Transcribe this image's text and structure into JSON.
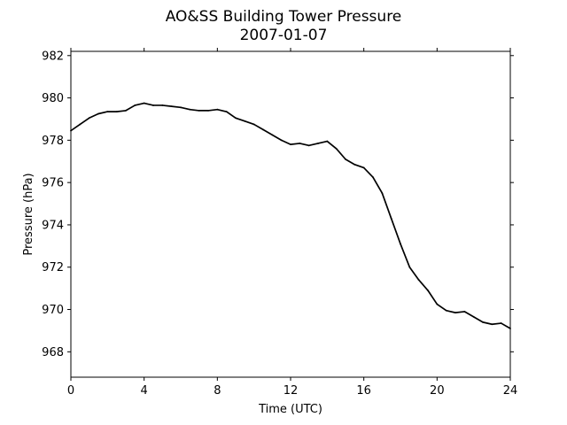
{
  "chart_data": {
    "type": "line",
    "title": "AO&SS Building Tower Pressure",
    "subtitle": "2007-01-07",
    "xlabel": "Time (UTC)",
    "ylabel": "Pressure (hPa)",
    "xlim": [
      0,
      24
    ],
    "ylim": [
      966.8,
      982.2
    ],
    "xticks": [
      0,
      4,
      8,
      12,
      16,
      20,
      24
    ],
    "yticks": [
      968,
      970,
      972,
      974,
      976,
      978,
      980,
      982
    ],
    "grid": false,
    "legend": "none",
    "line_color": "#000000",
    "series": [
      {
        "x": [
          0,
          0.5,
          1,
          1.5,
          2,
          2.5,
          3,
          3.5,
          4,
          4.5,
          5,
          5.5,
          6,
          6.5,
          7,
          7.5,
          8,
          8.5,
          9,
          9.5,
          10,
          10.5,
          11,
          11.5,
          12,
          12.5,
          13,
          13.5,
          14,
          14.5,
          15,
          15.5,
          16,
          16.5,
          17,
          17.5,
          18,
          18.5,
          19,
          19.5,
          20,
          20.5,
          21,
          21.5,
          22,
          22.5,
          23,
          23.5,
          24
        ],
        "y": [
          978.45,
          978.75,
          979.05,
          979.25,
          979.35,
          979.35,
          979.4,
          979.65,
          979.75,
          979.65,
          979.65,
          979.6,
          979.55,
          979.45,
          979.4,
          979.4,
          979.45,
          979.35,
          979.05,
          978.9,
          978.75,
          978.5,
          978.25,
          978.0,
          977.8,
          977.85,
          977.75,
          977.85,
          977.95,
          977.6,
          977.1,
          976.85,
          976.7,
          976.25,
          975.5,
          974.3,
          973.1,
          972.0,
          971.4,
          970.9,
          970.25,
          969.95,
          969.85,
          969.9,
          969.65,
          969.4,
          969.3,
          969.35,
          969.1
        ]
      }
    ]
  }
}
